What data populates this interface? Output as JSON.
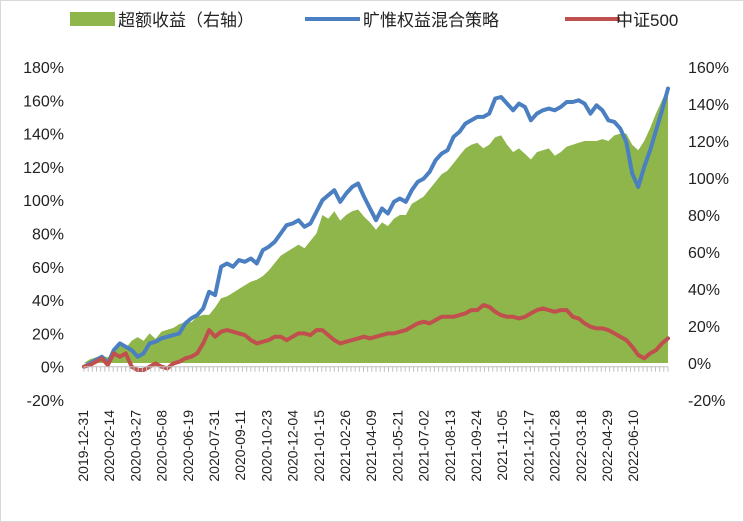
{
  "chart_data": {
    "type": "area+line",
    "legend": [
      {
        "name": "超额收益（右轴）",
        "color": "#8fb64a",
        "kind": "area"
      },
      {
        "name": "旷惟权益混合策略",
        "color": "#4a7fc1",
        "kind": "line"
      },
      {
        "name": "中证500",
        "color": "#c0504d",
        "kind": "line"
      }
    ],
    "y_left": {
      "min": -20,
      "max": 180,
      "step": 20,
      "ticks": [
        "-20%",
        "0%",
        "20%",
        "40%",
        "60%",
        "80%",
        "100%",
        "120%",
        "140%",
        "160%",
        "180%"
      ]
    },
    "y_right": {
      "min": -20,
      "max": 160,
      "step": 20,
      "ticks": [
        "-20%",
        "0%",
        "20%",
        "40%",
        "60%",
        "80%",
        "100%",
        "120%",
        "140%",
        "160%"
      ]
    },
    "x_labels": [
      "2019-12-31",
      "2020-02-14",
      "2020-03-27",
      "2020-05-08",
      "2020-06-19",
      "2020-07-31",
      "2020-09-11",
      "2020-10-23",
      "2020-12-04",
      "2021-01-15",
      "2021-02-26",
      "2021-04-09",
      "2021-05-21",
      "2021-07-02",
      "2021-08-13",
      "2021-09-24",
      "2021-11-05",
      "2021-12-17",
      "2022-01-28",
      "2022-03-18",
      "2022-04-29",
      "2022-06-10"
    ],
    "series": [
      {
        "name": "旷惟权益混合策略",
        "color": "#4a7fc1",
        "axis": "left",
        "values": [
          0,
          2,
          4,
          6,
          2,
          10,
          14,
          12,
          10,
          6,
          8,
          14,
          15,
          17,
          18,
          19,
          20,
          26,
          29,
          31,
          35,
          45,
          43,
          60,
          62,
          60,
          64,
          63,
          65,
          62,
          70,
          72,
          75,
          80,
          85,
          86,
          88,
          84,
          86,
          93,
          100,
          103,
          106,
          99,
          104,
          108,
          110,
          102,
          95,
          88,
          95,
          92,
          99,
          101,
          99,
          106,
          111,
          113,
          117,
          124,
          128,
          130,
          138,
          141,
          146,
          148,
          150,
          150,
          152,
          161,
          162,
          158,
          154,
          158,
          156,
          148,
          152,
          154,
          155,
          154,
          156,
          159,
          159,
          160,
          158,
          152,
          157,
          154,
          148,
          147,
          143,
          135,
          116,
          108,
          120,
          130,
          142,
          154,
          167
        ]
      },
      {
        "name": "中证500",
        "color": "#c0504d",
        "axis": "left",
        "values": [
          0,
          1,
          3,
          5,
          1,
          8,
          6,
          8,
          0,
          -2,
          -2,
          0,
          2,
          0,
          -1,
          2,
          3,
          5,
          6,
          8,
          14,
          22,
          18,
          21,
          22,
          21,
          20,
          19,
          16,
          14,
          15,
          16,
          18,
          18,
          16,
          18,
          20,
          20,
          19,
          22,
          22,
          19,
          16,
          14,
          15,
          16,
          17,
          18,
          17,
          18,
          19,
          20,
          20,
          21,
          22,
          24,
          26,
          27,
          26,
          28,
          30,
          30,
          30,
          31,
          32,
          34,
          34,
          37,
          36,
          33,
          31,
          30,
          30,
          29,
          30,
          32,
          34,
          35,
          34,
          33,
          34,
          34,
          30,
          29,
          26,
          24,
          23,
          23,
          22,
          20,
          18,
          16,
          12,
          7,
          5,
          8,
          10,
          14,
          17
        ]
      },
      {
        "name": "超额收益（右轴）",
        "color": "#8fb64a",
        "axis": "right",
        "values": [
          0,
          2,
          3,
          4,
          3,
          6,
          10,
          8,
          12,
          14,
          12,
          16,
          13,
          17,
          18,
          19,
          21,
          22,
          22,
          25,
          26,
          26,
          30,
          35,
          36,
          38,
          40,
          42,
          44,
          45,
          47,
          50,
          54,
          58,
          60,
          62,
          64,
          62,
          66,
          70,
          80,
          78,
          82,
          77,
          80,
          82,
          83,
          79,
          76,
          72,
          76,
          74,
          78,
          80,
          80,
          86,
          88,
          90,
          94,
          98,
          102,
          104,
          108,
          112,
          116,
          118,
          119,
          116,
          118,
          122,
          123,
          118,
          114,
          116,
          113,
          110,
          114,
          115,
          116,
          112,
          114,
          117,
          118,
          119,
          120,
          120,
          120,
          121,
          120,
          123,
          124,
          124,
          118,
          115,
          120,
          127,
          135,
          142,
          149
        ]
      }
    ]
  }
}
